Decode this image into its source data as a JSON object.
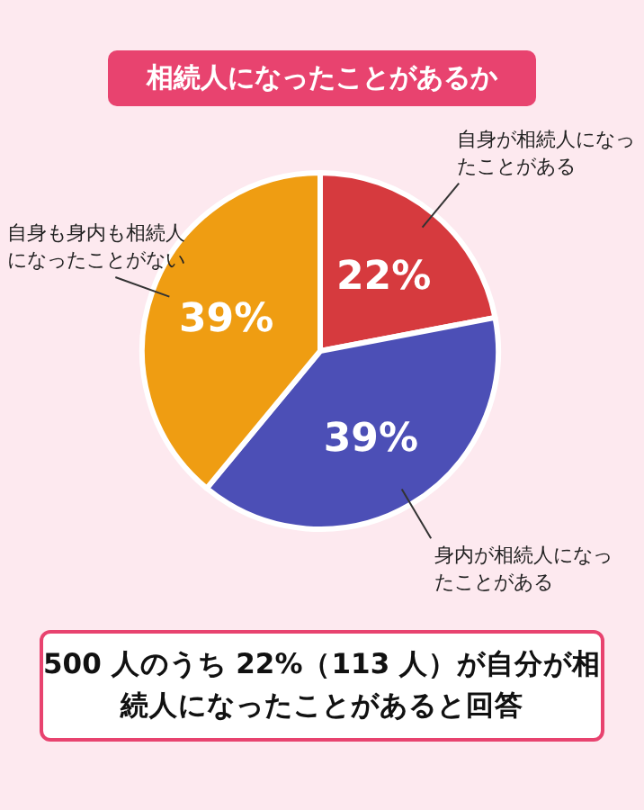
{
  "chart_data": {
    "type": "pie",
    "title": "相続人になったことがあるか",
    "categories": [
      "自身が相続人になったことがある",
      "身内が相続人になったことがある",
      "自身も身内も相続人になったことがない"
    ],
    "values": [
      22,
      39,
      39
    ],
    "colors": [
      "#d63a3e",
      "#4c4fb6",
      "#ef9d12"
    ],
    "value_labels": [
      "22%",
      "39%",
      "39%"
    ],
    "annotations": [
      "500 人のうち 22%（113 人）が自分が相続人になったことがあると回答"
    ]
  }
}
